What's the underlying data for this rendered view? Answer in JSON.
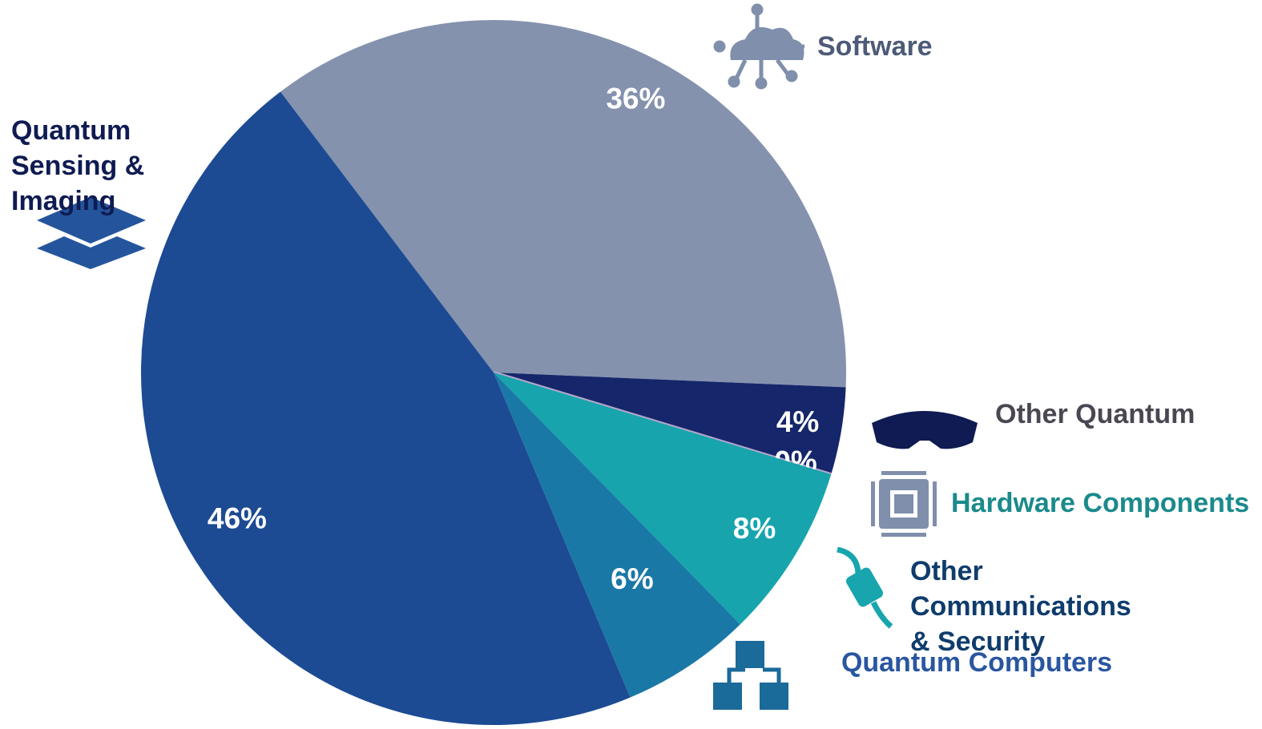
{
  "chart_data": {
    "type": "pie",
    "categories": [
      "Software",
      "Quantum Sensing & Imaging",
      "Other Quantum",
      "Hardware Components",
      "Other Communications & Security",
      "Quantum Computers"
    ],
    "values": [
      36,
      4,
      0,
      8,
      6,
      46
    ],
    "value_labels": [
      "36%",
      "4%",
      "0%",
      "8%",
      "6%",
      "46%"
    ],
    "colors": [
      "#8492ae",
      "#15266a",
      "#b7a6cc",
      "#17a4ad",
      "#1a78a6",
      "#1c4b93"
    ],
    "label_colors": [
      "#4d5b78",
      "#0f1b52",
      "#4b4752",
      "#1b8a8c",
      "#0f3c6c",
      "#2a56a0"
    ]
  }
}
